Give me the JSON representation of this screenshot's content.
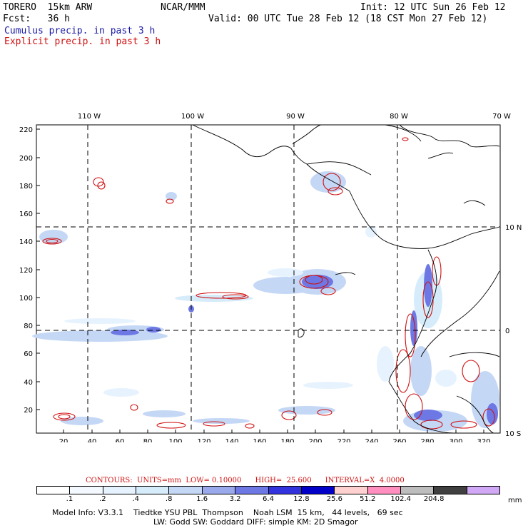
{
  "header": {
    "model": "TORERO  15km ARW",
    "org": "NCAR/MMM",
    "init": "Init: 12 UTC Sun 26 Feb 12",
    "fcst": "Fcst:   36 h",
    "valid": "Valid: 00 UTC Tue 28 Feb 12 (18 CST Mon 27 Feb 12)",
    "field1": "Cumulus precip. in past 3 h",
    "field2": "Explicit precip. in past 3 h"
  },
  "map": {
    "top_lon_labels": [
      "110 W",
      "100 W",
      "90 W",
      "80 W",
      "70 W"
    ],
    "right_lat_labels": [
      "10 N",
      "0",
      "10 S"
    ],
    "left_y_labels": [
      "220",
      "200",
      "180",
      "160",
      "140",
      "120",
      "100",
      "80",
      "60",
      "40",
      "20"
    ],
    "bottom_x_labels": [
      "20",
      "40",
      "60",
      "80",
      "100",
      "120",
      "140",
      "160",
      "180",
      "200",
      "220",
      "240",
      "260",
      "280",
      "300",
      "320"
    ]
  },
  "contours": "CONTOURS:  UNITS=mm  LOW= 0.10000      HIGH=  25.600      INTERVAL=X  4.0000",
  "colorbar": {
    "colors": [
      "#ffffff",
      "#f4f9ff",
      "#e6f3ff",
      "#d6ecfb",
      "#c4d8f6",
      "#9aa8ec",
      "#6d78e4",
      "#3333dd",
      "#0000c8",
      "#ffd0d0",
      "#ff8fbf",
      "#bdbdbd",
      "#404040",
      "#d0a8f5"
    ],
    "labels": [
      ".1",
      ".2",
      ".4",
      ".8",
      "1.6",
      "3.2",
      "6.4",
      "12.8",
      "25.6",
      "51.2",
      "102.4",
      "204.8"
    ],
    "unit": "mm"
  },
  "footer": {
    "line1": "Model Info: V3.3.1    Tiedtke YSU PBL  Thompson    Noah LSM  15 km,   44 levels,   69 sec",
    "line2": "LW: Godd SW: Goddard DIFF: simple KM: 2D Smagor"
  },
  "colors": {
    "cumulus": "#1a1aa6",
    "explicit": "#d01010"
  }
}
